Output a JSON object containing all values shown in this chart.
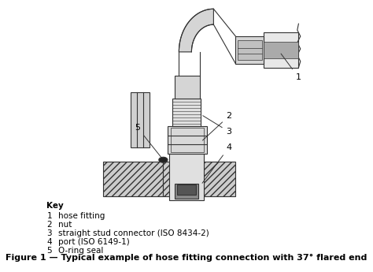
{
  "title": "Figure 1 — Typical example of hose fitting connection with 37° flared end",
  "title_fontsize": 8,
  "title_bold": true,
  "bg_color": "#ffffff",
  "key_title": "Key",
  "key_items": [
    [
      1,
      "hose fitting"
    ],
    [
      2,
      "nut"
    ],
    [
      3,
      "straight stud connector (ISO 8434-2)"
    ],
    [
      4,
      "port (ISO 6149-1)"
    ],
    [
      5,
      "O-ring seal"
    ]
  ],
  "key_fontsize": 7.5,
  "label_fontsize": 8,
  "line_color": "#333333",
  "hatch_color": "#555555",
  "dark_fill": "#444444",
  "light_fill": "#dddddd",
  "medium_fill": "#aaaaaa"
}
